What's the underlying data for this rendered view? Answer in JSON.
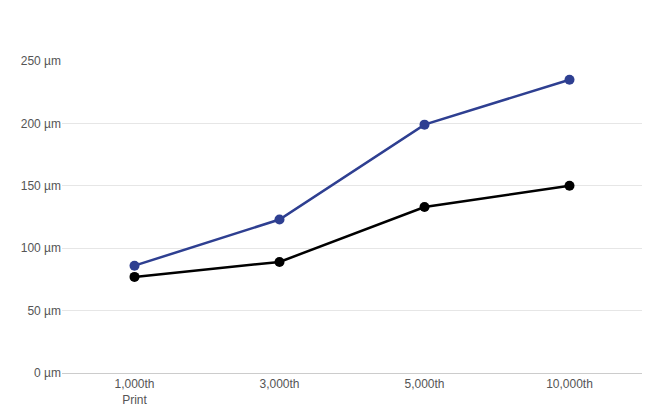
{
  "chart_data": {
    "type": "line",
    "categories": [
      "1,000th\nPrint",
      "3,000th",
      "5,000th",
      "10,000th"
    ],
    "series": [
      {
        "color": "#2e3f91",
        "values": [
          86,
          123,
          199,
          235
        ]
      },
      {
        "color": "#000000",
        "values": [
          77,
          89,
          133,
          150
        ]
      }
    ],
    "ylim": [
      0,
      250
    ],
    "yticks": [
      {
        "value": 0,
        "label": "0 µm"
      },
      {
        "value": 50,
        "label": "50 µm"
      },
      {
        "value": 100,
        "label": "100 µm"
      },
      {
        "value": 150,
        "label": "150 µm"
      },
      {
        "value": 200,
        "label": "200 µm"
      },
      {
        "value": 250,
        "label": "250 µm"
      }
    ],
    "grid": true,
    "marker": "circle"
  }
}
